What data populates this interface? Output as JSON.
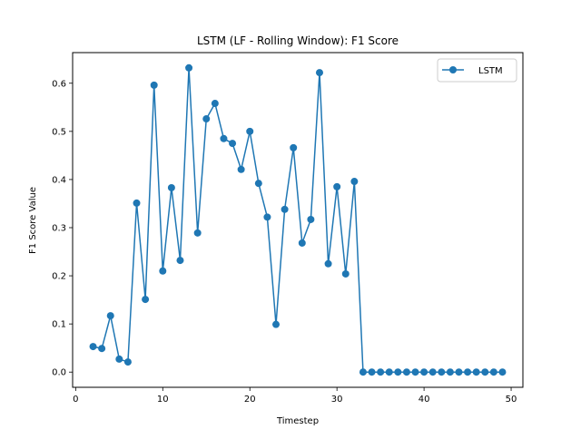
{
  "chart_data": {
    "type": "line",
    "title": "LSTM (LF - Rolling Window): F1 Score",
    "xlabel": "Timestep",
    "ylabel": "F1 Score Value",
    "xlim": [
      -0.35,
      51.35
    ],
    "ylim": [
      -0.0316,
      0.6636
    ],
    "xticks": [
      0,
      10,
      20,
      30,
      40,
      50
    ],
    "yticks": [
      0.0,
      0.1,
      0.2,
      0.3,
      0.4,
      0.5,
      0.6
    ],
    "xtick_labels": [
      "0",
      "10",
      "20",
      "30",
      "40",
      "50"
    ],
    "ytick_labels": [
      "0.0",
      "0.1",
      "0.2",
      "0.3",
      "0.4",
      "0.5",
      "0.6"
    ],
    "grid": false,
    "legend_position": "top-right",
    "series": [
      {
        "name": "LSTM",
        "color": "#1f77b4",
        "marker": "circle",
        "x": [
          2,
          3,
          4,
          5,
          6,
          7,
          8,
          9,
          10,
          11,
          12,
          13,
          14,
          15,
          16,
          17,
          18,
          19,
          20,
          21,
          22,
          23,
          24,
          25,
          26,
          27,
          28,
          29,
          30,
          31,
          32,
          33,
          34,
          35,
          36,
          37,
          38,
          39,
          40,
          41,
          42,
          43,
          44,
          45,
          46,
          47,
          48,
          49
        ],
        "y": [
          0.053,
          0.049,
          0.117,
          0.027,
          0.021,
          0.351,
          0.151,
          0.596,
          0.21,
          0.383,
          0.232,
          0.632,
          0.289,
          0.526,
          0.558,
          0.485,
          0.475,
          0.421,
          0.5,
          0.392,
          0.322,
          0.099,
          0.338,
          0.466,
          0.268,
          0.317,
          0.622,
          0.225,
          0.385,
          0.204,
          0.396,
          0.0,
          0.0,
          0.0,
          0.0,
          0.0,
          0.0,
          0.0,
          0.0,
          0.0,
          0.0,
          0.0,
          0.0,
          0.0,
          0.0,
          0.0,
          0.0,
          0.0
        ]
      }
    ]
  }
}
